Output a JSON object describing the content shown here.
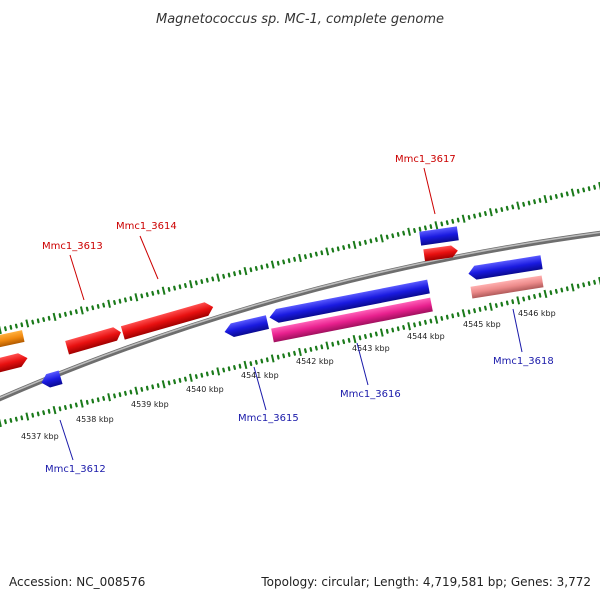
{
  "title": "Magnetococcus sp. MC-1, complete genome",
  "footer": {
    "accession": "Accession: NC_008576",
    "summary": "Topology: circular; Length: 4,719,581 bp; Genes: 3,772"
  },
  "scale_labels": [
    "4537 kbp",
    "4538 kbp",
    "4539 kbp",
    "4540 kbp",
    "4541 kbp",
    "4542 kbp",
    "4543 kbp",
    "4544 kbp",
    "4545 kbp",
    "4546 kbp"
  ],
  "genes": [
    {
      "name": "Mmc1_3612",
      "strand": "reverse",
      "color": "#1a1ad4"
    },
    {
      "name": "Mmc1_3613",
      "strand": "forward",
      "color": "#e01010"
    },
    {
      "name": "Mmc1_3614",
      "strand": "forward",
      "color": "#e01010"
    },
    {
      "name": "Mmc1_3615",
      "strand": "reverse",
      "color": "#1a1ad4"
    },
    {
      "name": "Mmc1_3616",
      "strand": "forward",
      "color": "#e0208a"
    },
    {
      "name": "Mmc1_3617",
      "strand": "forward",
      "color": "#e01010"
    },
    {
      "name": "Mmc1_3618",
      "strand": "reverse",
      "color": "#e88a8a"
    }
  ],
  "colors": {
    "backbone": "#8a8a8a",
    "ticks": "#1a7a1a",
    "forward_label": "#cc0000",
    "reverse_label": "#1a1aaa",
    "orange_feature": "#f28a10"
  }
}
